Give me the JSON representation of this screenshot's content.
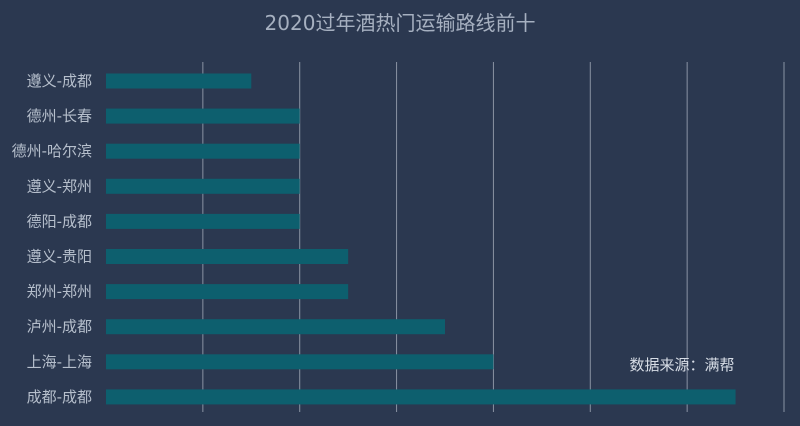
{
  "colors": {
    "background": "#2b3850",
    "bar": "#0d5f6e",
    "grid": "#8a93a3",
    "title": "#a6b0c0",
    "label": "#b6bfcc",
    "source": "#d7dde6"
  },
  "chart_data": {
    "type": "bar",
    "orientation": "horizontal",
    "title": "2020过年酒热门运输路线前十",
    "categories": [
      "遵义-成都",
      "德州-长春",
      "德州-哈尔滨",
      "遵义-郑州",
      "德阳-成都",
      "遵义-贵阳",
      "郑州-郑州",
      "泸州-成都",
      "上海-上海",
      "成都-成都"
    ],
    "values": [
      3,
      4,
      4,
      4,
      4,
      5,
      5,
      7,
      8,
      13
    ],
    "xlim": [
      0,
      14
    ],
    "x_gridline_step": 2,
    "grid": true,
    "xlabel": "",
    "ylabel": "",
    "source_note": "数据来源：满帮"
  }
}
